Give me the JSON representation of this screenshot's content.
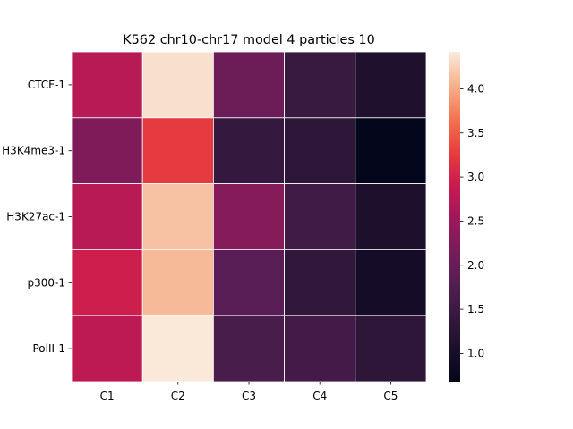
{
  "chart_data": {
    "type": "heatmap",
    "title": "K562 chr10-chr17 model 4 particles 10",
    "xlabel": "",
    "ylabel": "",
    "x_categories": [
      "C1",
      "C2",
      "C3",
      "C4",
      "C5"
    ],
    "y_categories": [
      "CTCF-1",
      "H3K4me3-1",
      "H3K27ac-1",
      "p300-1",
      "PolII-1"
    ],
    "values": [
      [
        2.75,
        4.35,
        2.05,
        1.45,
        1.1
      ],
      [
        2.25,
        3.25,
        1.4,
        1.3,
        0.7
      ],
      [
        2.75,
        4.15,
        2.3,
        1.55,
        1.05
      ],
      [
        2.95,
        4.1,
        1.85,
        1.35,
        0.95
      ],
      [
        2.8,
        4.4,
        1.65,
        1.6,
        1.3
      ]
    ],
    "colorbar": {
      "min": 0.68,
      "max": 4.42,
      "ticks": [
        "1.0",
        "1.5",
        "2.0",
        "2.5",
        "3.0",
        "3.5",
        "4.0"
      ],
      "colormap": "rocket"
    },
    "grid": false
  }
}
